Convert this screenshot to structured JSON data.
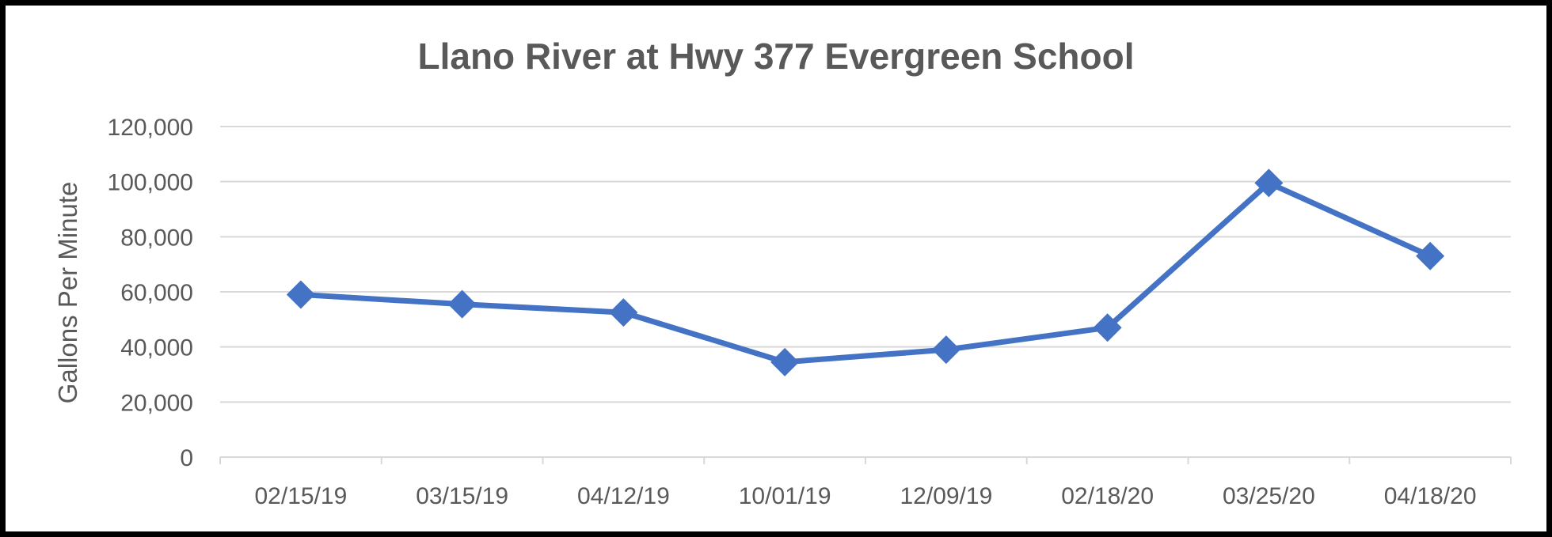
{
  "chart_data": {
    "type": "line",
    "title": "Llano River at Hwy 377 Evergreen School",
    "xlabel": "",
    "ylabel": "Gallons Per Minute",
    "categories": [
      "02/15/19",
      "03/15/19",
      "04/12/19",
      "10/01/19",
      "12/09/19",
      "02/18/20",
      "03/25/20",
      "04/18/20"
    ],
    "series": [
      {
        "values": [
          59000,
          55500,
          52500,
          34500,
          39000,
          47000,
          99500,
          73000
        ]
      }
    ],
    "ylim": [
      0,
      120000
    ],
    "yticks": [
      0,
      20000,
      40000,
      60000,
      80000,
      100000,
      120000
    ],
    "ytick_labels": [
      "0",
      "20,000",
      "40,000",
      "60,000",
      "80,000",
      "100,000",
      "120,000"
    ],
    "grid": true,
    "legend": "none",
    "colors": {
      "series": "#4472C4",
      "grid": "#D9D9D9",
      "axis": "#D9D9D9",
      "text": "#595959",
      "frame": "#000000"
    },
    "marker": "diamond"
  }
}
